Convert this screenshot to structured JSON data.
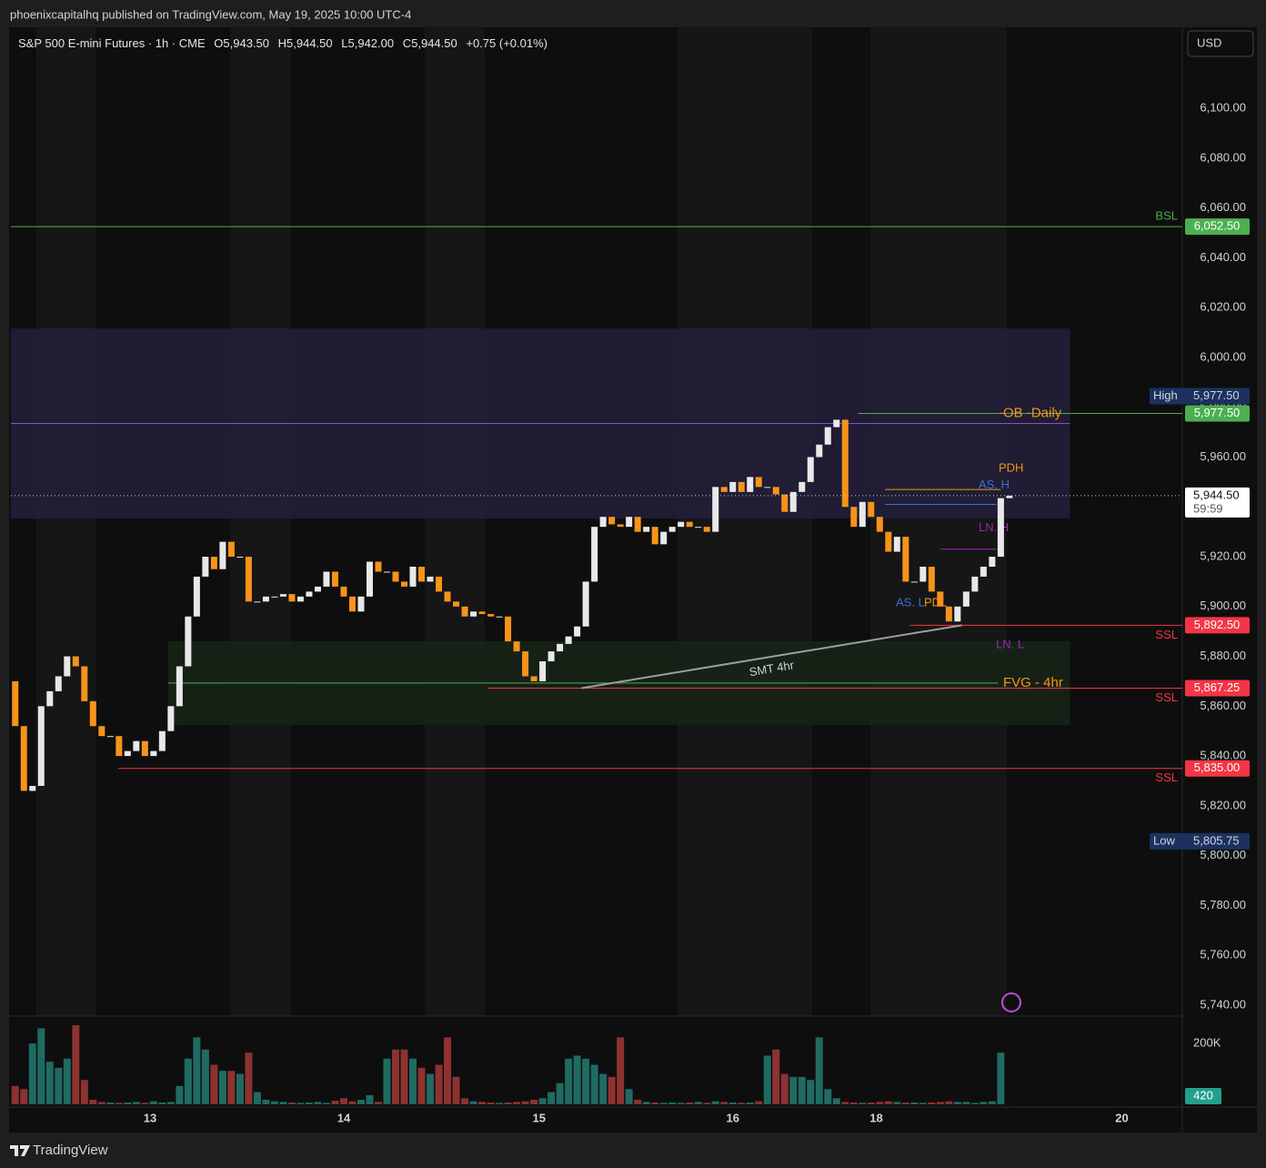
{
  "header": {
    "published": "phoenixcapitalhq published on TradingView.com, May 19, 2025 10:00 UTC-4",
    "symbol": "S&P 500 E-mini Futures · 1h · CME",
    "ohlc": [
      "O5,943.50",
      "H5,944.50",
      "L5,942.00",
      "C5,944.50"
    ],
    "change": "+0.75 (+0.01%)",
    "currency": "USD"
  },
  "chart_data": {
    "type": "candlestick",
    "open": [
      5870,
      5852,
      5826,
      5828,
      5860,
      5866,
      5872,
      5880,
      5876,
      5862,
      5852,
      5848,
      5848,
      5840,
      5842,
      5846,
      5840,
      5842,
      5850,
      5860,
      5876,
      5896,
      5912,
      5920,
      5915,
      5926,
      5920,
      5920,
      5902,
      5902,
      5904,
      5904,
      5905,
      5902,
      5904,
      5906,
      5908,
      5914,
      5908,
      5904,
      5898,
      5904,
      5918,
      5914,
      5914,
      5910,
      5908,
      5916,
      5910,
      5912,
      5906,
      5902,
      5900,
      5896,
      5898,
      5897,
      5896,
      5896,
      5886,
      5882,
      5872,
      5870,
      5878,
      5882,
      5885,
      5888,
      5892,
      5910,
      5932,
      5936,
      5933,
      5932,
      5936,
      5930,
      5932,
      5925,
      5930,
      5932,
      5934,
      5932,
      5932,
      5930,
      5948,
      5946,
      5950,
      5946,
      5952,
      5948,
      5948,
      5945,
      5938,
      5946,
      5950,
      5960,
      5965,
      5972,
      5975,
      5940,
      5932,
      5942,
      5936,
      5930,
      5922,
      5928,
      5910,
      5910,
      5916,
      5906,
      5900,
      5894,
      5900,
      5906,
      5912,
      5916,
      5920,
      5943.5
    ],
    "high": {
      "name": "High",
      "value": 5977.5,
      "label": "5,977.50"
    },
    "low": {
      "name": "Low",
      "value": 5805.75,
      "label": "5,805.75"
    },
    "close": [
      5852,
      5826,
      5828,
      5860,
      5866,
      5872,
      5880,
      5876,
      5862,
      5852,
      5848,
      5848,
      5840,
      5842,
      5846,
      5840,
      5842,
      5850,
      5860,
      5876,
      5896,
      5912,
      5920,
      5915,
      5926,
      5920,
      5920,
      5902,
      5902,
      5904,
      5904,
      5905,
      5902,
      5904,
      5906,
      5908,
      5914,
      5908,
      5904,
      5898,
      5904,
      5918,
      5914,
      5914,
      5910,
      5908,
      5916,
      5910,
      5912,
      5906,
      5902,
      5900,
      5896,
      5898,
      5897,
      5896,
      5896,
      5886,
      5882,
      5872,
      5870,
      5878,
      5882,
      5885,
      5888,
      5892,
      5910,
      5932,
      5936,
      5933,
      5932,
      5936,
      5930,
      5932,
      5925,
      5930,
      5932,
      5934,
      5932,
      5932,
      5930,
      5948,
      5946,
      5950,
      5946,
      5952,
      5948,
      5948,
      5945,
      5938,
      5946,
      5950,
      5960,
      5965,
      5972,
      5975,
      5940,
      5932,
      5942,
      5936,
      5930,
      5922,
      5928,
      5910,
      5910,
      5916,
      5906,
      5900,
      5894,
      5900,
      5906,
      5912,
      5916,
      5920,
      5943.5,
      5944.5
    ],
    "up_color": "#e8e8e8",
    "down_color": "#f7931a",
    "xlim": [
      -0.5,
      135
    ],
    "xticks": [
      {
        "value": 15.6,
        "label": "13"
      },
      {
        "value": 38,
        "label": "14"
      },
      {
        "value": 60.6,
        "label": "15"
      },
      {
        "value": 83,
        "label": "16"
      },
      {
        "value": 99.6,
        "label": "18"
      },
      {
        "value": 128,
        "label": "20"
      }
    ],
    "ylim": [
      5735.6,
      6131.8
    ],
    "yticks": [
      {
        "value": 5740,
        "label": "5,740.00"
      },
      {
        "value": 5760,
        "label": "5,760.00"
      },
      {
        "value": 5780,
        "label": "5,780.00"
      },
      {
        "value": 5800,
        "label": "5,800.00"
      },
      {
        "value": 5820,
        "label": "5,820.00"
      },
      {
        "value": 5840,
        "label": "5,840.00"
      },
      {
        "value": 5860,
        "label": "5,860.00"
      },
      {
        "value": 5880,
        "label": "5,880.00"
      },
      {
        "value": 5900,
        "label": "5,900.00"
      },
      {
        "value": 5920,
        "label": "5,920.00"
      },
      {
        "value": 5940,
        "label": "5,940.00"
      },
      {
        "value": 5960,
        "label": "5,960.00"
      },
      {
        "value": 5980,
        "label": "5,980.00"
      },
      {
        "value": 6000,
        "label": "6,000.00"
      },
      {
        "value": 6020,
        "label": "6,020.00"
      },
      {
        "value": 6040,
        "label": "6,040.00"
      },
      {
        "value": 6060,
        "label": "6,060.00"
      },
      {
        "value": 6080,
        "label": "6,080.00"
      },
      {
        "value": 6100,
        "label": "6,100.00"
      }
    ],
    "volume": {
      "values": [
        60000,
        50000,
        200000,
        250000,
        140000,
        120000,
        150000,
        260000,
        80000,
        15000,
        8000,
        6000,
        5000,
        6000,
        8000,
        5000,
        10000,
        6000,
        8000,
        60000,
        150000,
        220000,
        180000,
        130000,
        110000,
        110000,
        100000,
        170000,
        40000,
        15000,
        10000,
        8000,
        6000,
        5000,
        6000,
        8000,
        5000,
        12000,
        20000,
        10000,
        15000,
        30000,
        8000,
        150000,
        180000,
        180000,
        150000,
        120000,
        100000,
        130000,
        220000,
        90000,
        20000,
        10000,
        8000,
        6000,
        5000,
        6000,
        8000,
        10000,
        15000,
        20000,
        40000,
        70000,
        150000,
        160000,
        150000,
        130000,
        100000,
        90000,
        220000,
        50000,
        15000,
        8000,
        6000,
        5000,
        6000,
        5000,
        6000,
        8000,
        5000,
        10000,
        8000,
        6000,
        5000,
        6000,
        10000,
        160000,
        180000,
        100000,
        90000,
        90000,
        80000,
        220000,
        50000,
        20000,
        8000,
        6000,
        5000,
        6000,
        8000,
        10000,
        8000,
        6000,
        6000,
        5000,
        6000,
        8000,
        10000,
        8000,
        8000,
        5000,
        8000,
        10000,
        170000,
        420
      ],
      "up_color": "#1f6b62",
      "down_color": "#8e3131",
      "ylim": [
        0,
        275000
      ],
      "yticks": [
        {
          "value": 200000,
          "label": "200K"
        }
      ],
      "last_label": "420"
    },
    "levels": [
      {
        "name": "BSL",
        "value": 6052.5,
        "label": "6,052.50",
        "color": "#4caf50",
        "text_color": "#4caf50",
        "from": -0.5,
        "to": 135
      },
      {
        "name": "-OB -Daily",
        "value": 5977.5,
        "label": "5,977.50",
        "color": "#4caf50",
        "text_color": "#f7931a",
        "from": 97.5,
        "to": 135
      },
      {
        "value": 5973.5,
        "color": "#7e57c2",
        "from": -0.5,
        "to": 122
      },
      {
        "name": "PDH",
        "value": 5947,
        "color": "#f7931a",
        "text_color": "#f7931a",
        "from": 100.6,
        "to": 114
      },
      {
        "name": "AS. H",
        "value": 5941,
        "color": "#3d6fd8",
        "text_color": "#3d6fd8",
        "from": 100.6,
        "to": 113.5
      },
      {
        "name": "LN. H",
        "value": 5923,
        "color": "#9c27b0",
        "text_color": "#9c27b0",
        "from": 107,
        "to": 113.5
      },
      {
        "name": "SSL",
        "value": 5892.5,
        "label": "5,892.50",
        "color": "#f23645",
        "text_color": "#f23645",
        "from": 103.5,
        "to": 135
      },
      {
        "name": "FVG - 4hr",
        "value": 5869.3,
        "color": "#4caf50",
        "text_color": "#f7931a",
        "from": 17.7,
        "to": 113.7
      },
      {
        "name": "SSL",
        "value": 5867.25,
        "label": "5,867.25",
        "color": "#f23645",
        "text_color": "#f23645",
        "from": 54.7,
        "to": 135
      },
      {
        "name": "SSL",
        "value": 5835,
        "label": "5,835.00",
        "color": "#f23645",
        "text_color": "#f23645",
        "from": 11.9,
        "to": 135
      }
    ],
    "zones": [
      {
        "from": -0.5,
        "to": 122,
        "top": 6011.6,
        "bottom": 5935.3,
        "color": "#221f3a"
      },
      {
        "from": 17.7,
        "to": 122,
        "top": 5886.1,
        "bottom": 5852.5,
        "color": "#172518"
      }
    ],
    "annotations": [
      {
        "text": "AS. L",
        "color": "#3d6fd8"
      },
      {
        "text": "PDL",
        "color": "#f7931a"
      },
      {
        "text": "LN. L",
        "color": "#9c27b0"
      }
    ],
    "trendline": {
      "label": "SMT 4hr",
      "color": "#9e9e9e",
      "from": [
        65.5,
        5867.25
      ],
      "to": [
        109.5,
        5892.5
      ]
    },
    "last_price": {
      "value": 5944.5,
      "label": "5,944.50",
      "countdown": "59:59"
    }
  },
  "footer": {
    "brand": "TradingView"
  }
}
